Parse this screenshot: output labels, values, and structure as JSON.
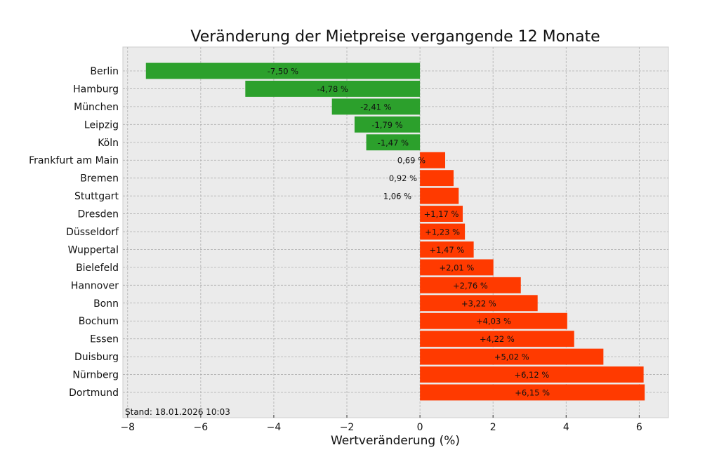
{
  "chart_data": {
    "type": "bar",
    "orientation": "horizontal",
    "title": "Veränderung der Mietpreise vergangende 12 Monate",
    "xlabel": "Wertveränderung (%)",
    "ylabel": "",
    "xlim": [
      -8.13,
      6.8
    ],
    "xticks": [
      -8,
      -6,
      -4,
      -2,
      0,
      2,
      4,
      6
    ],
    "xtick_labels": [
      "−8",
      "−6",
      "−4",
      "−2",
      "0",
      "2",
      "4",
      "6"
    ],
    "grid": true,
    "annotation": "Stand: 18.01.2026 10:03",
    "colors": {
      "negative": "#2ca02c",
      "positive": "#ff3a00",
      "background": "#ebebeb"
    },
    "categories": [
      "Berlin",
      "Hamburg",
      "München",
      "Leipzig",
      "Köln",
      "Frankfurt am Main",
      "Bremen",
      "Stuttgart",
      "Dresden",
      "Düsseldorf",
      "Wuppertal",
      "Bielefeld",
      "Hannover",
      "Bonn",
      "Bochum",
      "Essen",
      "Duisburg",
      "Nürnberg",
      "Dortmund"
    ],
    "values": [
      -7.5,
      -4.78,
      -2.41,
      -1.79,
      -1.47,
      0.69,
      0.92,
      1.06,
      1.17,
      1.23,
      1.47,
      2.01,
      2.76,
      3.22,
      4.03,
      4.22,
      5.02,
      6.12,
      6.15
    ],
    "data_labels": [
      "-7,50 %",
      "-4,78 %",
      "-2,41 %",
      "-1,79 %",
      "-1,47 %",
      "0,69 %",
      "0,92 %",
      "1,06 %",
      "+1,17 %",
      "+1,23 %",
      "+1,47 %",
      "+2,01 %",
      "+2,76 %",
      "+3,22 %",
      "+4,03 %",
      "+4,22 %",
      "+5,02 %",
      "+6,12 %",
      "+6,15 %"
    ]
  }
}
